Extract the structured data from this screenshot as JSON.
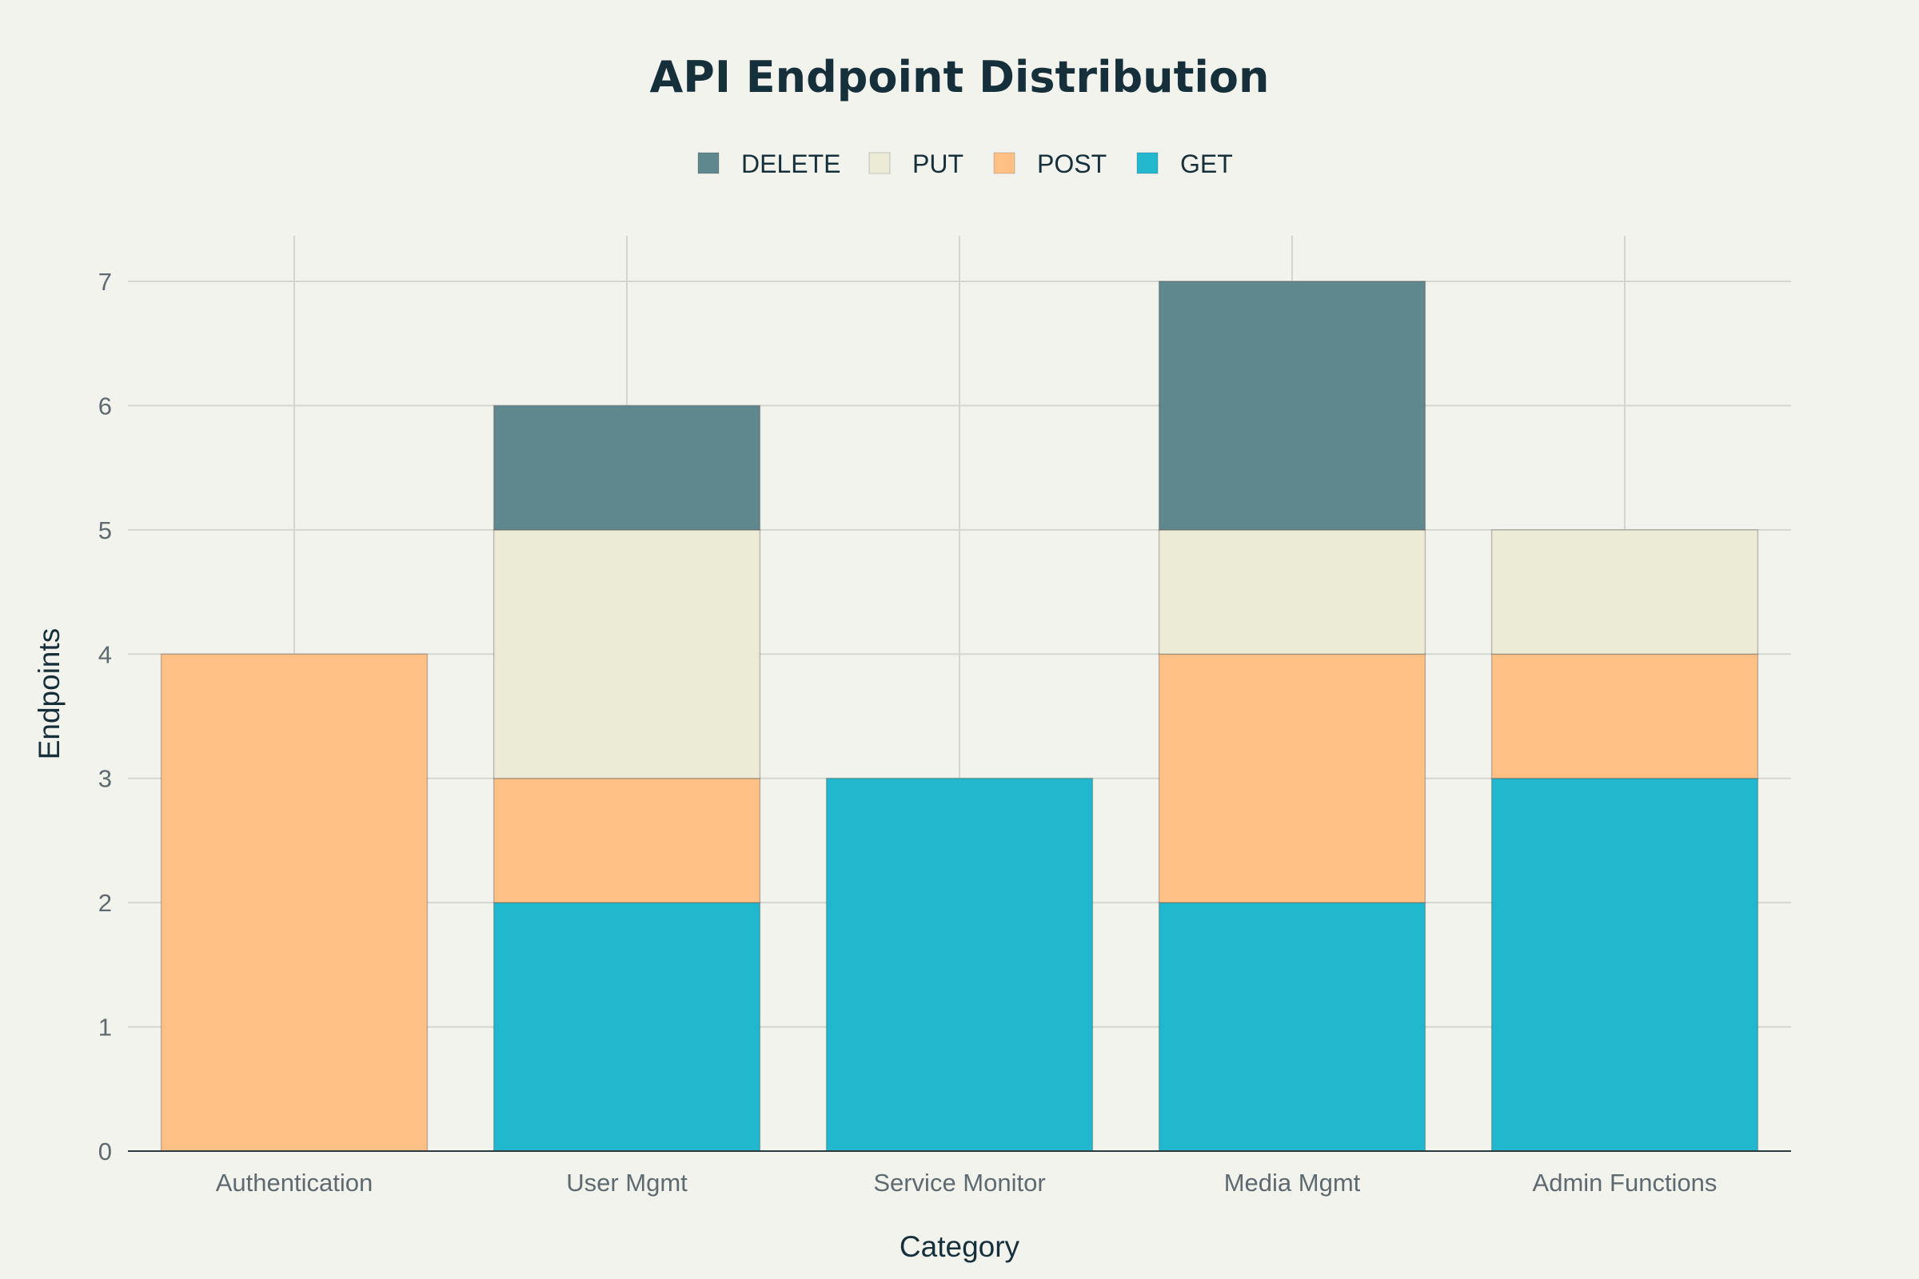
{
  "chart_data": {
    "type": "bar",
    "stacked": true,
    "title": "API Endpoint Distribution",
    "xlabel": "Category",
    "ylabel": "Endpoints",
    "categories": [
      "Authentication",
      "User Mgmt",
      "Service Monitor",
      "Media Mgmt",
      "Admin Functions"
    ],
    "series": [
      {
        "name": "GET",
        "color": "#21b8ce",
        "values": [
          0,
          2,
          3,
          2,
          3
        ]
      },
      {
        "name": "POST",
        "color": "#ffc085",
        "values": [
          4,
          1,
          0,
          2,
          1
        ]
      },
      {
        "name": "PUT",
        "color": "#ecebd6",
        "values": [
          0,
          2,
          0,
          1,
          1
        ]
      },
      {
        "name": "DELETE",
        "color": "#5e878e",
        "values": [
          0,
          1,
          0,
          2,
          0
        ]
      }
    ],
    "legend_order": [
      "DELETE",
      "PUT",
      "POST",
      "GET"
    ],
    "legend_position": "top-center",
    "ylim": [
      0,
      7
    ],
    "yticks": [
      0,
      1,
      2,
      3,
      4,
      5,
      6,
      7
    ],
    "grid": true
  }
}
